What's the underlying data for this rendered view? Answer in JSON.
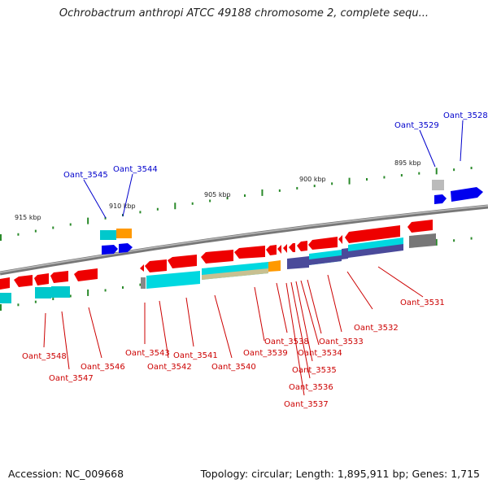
{
  "title": "Ochrobactrum anthropi ATCC 49188 chromosome 2, complete sequ...",
  "footer": {
    "accession": "Accession: NC_009668",
    "summary": "Topology: circular; Length: 1,895,911 bp; Genes: 1,715"
  },
  "scale_labels": [
    "915 kbp",
    "910 kbp",
    "905 kbp",
    "900 kbp",
    "895 kbp"
  ],
  "genes_top": [
    "Oant_3545",
    "Oant_3544",
    "Oant_3529",
    "Oant_3528"
  ],
  "genes_bottom": [
    "Oant_3548",
    "Oant_3547",
    "Oant_3546",
    "Oant_3543",
    "Oant_3542",
    "Oant_3541",
    "Oant_3540",
    "Oant_3539",
    "Oant_3538",
    "Oant_3537",
    "Oant_3536",
    "Oant_3535",
    "Oant_3534",
    "Oant_3533",
    "Oant_3532",
    "Oant_3531"
  ],
  "colors": {
    "forward_strand": "#0000ee",
    "reverse_strand": "#ee0000",
    "backbone": "#888888",
    "cyan_feature": "#00d8e0",
    "orange_feature": "#ff9900",
    "purple_feature": "#4a4a9a",
    "khaki_feature": "#c8c090"
  }
}
